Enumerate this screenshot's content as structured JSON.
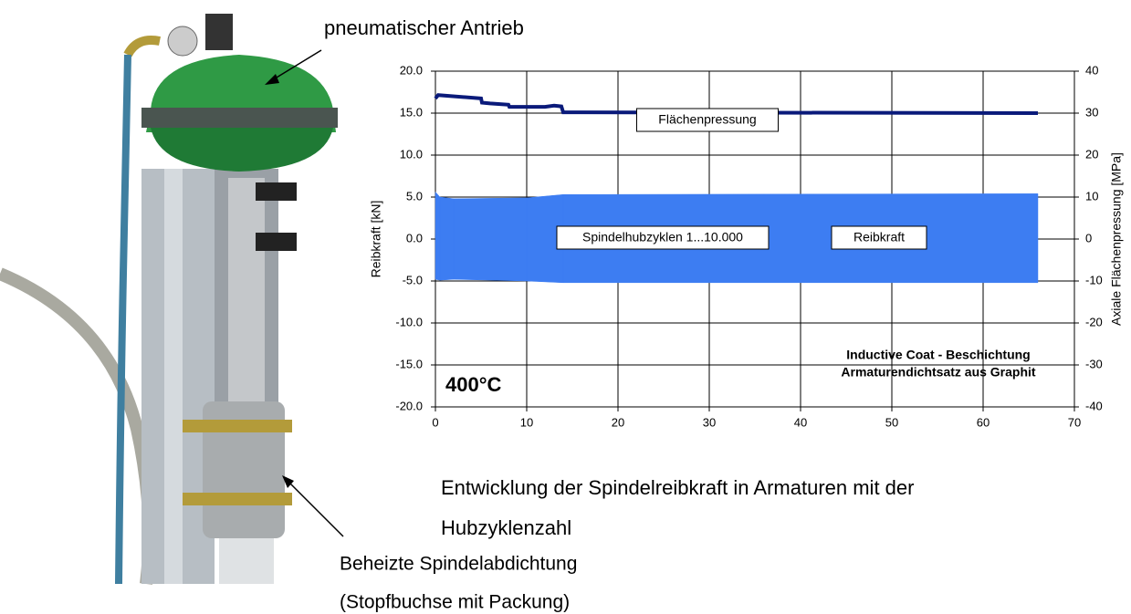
{
  "chart_data": {
    "type": "line",
    "xlim": [
      0,
      70
    ],
    "xticks": [
      0,
      10,
      20,
      30,
      40,
      50,
      60,
      70
    ],
    "ylim": [
      -20,
      20
    ],
    "yticks": [
      {
        "value": -20,
        "label": "-20.0"
      },
      {
        "value": -15,
        "label": "-15.0"
      },
      {
        "value": -10,
        "label": "-10.0"
      },
      {
        "value": -5,
        "label": "-5.0"
      },
      {
        "value": 0,
        "label": "0.0"
      },
      {
        "value": 5,
        "label": "5.0"
      },
      {
        "value": 10,
        "label": "10.0"
      },
      {
        "value": 15,
        "label": "15.0"
      },
      {
        "value": 20,
        "label": "20.0"
      }
    ],
    "y2lim": [
      -40,
      40
    ],
    "y2ticks": [
      -40,
      -30,
      -20,
      -10,
      0,
      10,
      20,
      30,
      40
    ],
    "ylabel": "Reibkraft [kN]",
    "y2label": "Axiale Flächenpressung [MPa]",
    "grid": true,
    "series": [
      {
        "name": "Reibkraft",
        "kind": "band",
        "color": "#3d7df2",
        "x": [
          0,
          0.5,
          2,
          10,
          14,
          66
        ],
        "upper": [
          5.6,
          5.0,
          4.8,
          4.9,
          5.3,
          5.4
        ],
        "lower": [
          -4.8,
          -4.9,
          -4.8,
          -5.0,
          -5.2,
          -5.2
        ]
      },
      {
        "name": "Flächenpressung",
        "axis": "y2",
        "color": "#0a1a7a",
        "x": [
          0,
          0.3,
          5,
          5.1,
          6,
          8,
          8.1,
          12,
          13,
          13.8,
          14,
          66
        ],
        "values": [
          33.5,
          34.3,
          33.5,
          32.5,
          32.3,
          32,
          31.5,
          31.5,
          31.8,
          31.6,
          30.2,
          30
        ]
      }
    ],
    "annotations": [
      "Flächenpressung",
      "Spindelhubzyklen 1...10.000",
      "Reibkraft",
      "Inductive Coat - Beschichtung",
      "Armaturendichtsatz aus Graphit",
      "400°C"
    ]
  },
  "caption": [
    "Entwicklung der Spindelreibkraft in Armaturen mit der",
    "Hubzyklenzahl"
  ],
  "photo_labels": [
    "pneumatischer Antrieb",
    "Beheizte Spindelabdichtung",
    "(Stopfbuchse mit Packung)"
  ]
}
